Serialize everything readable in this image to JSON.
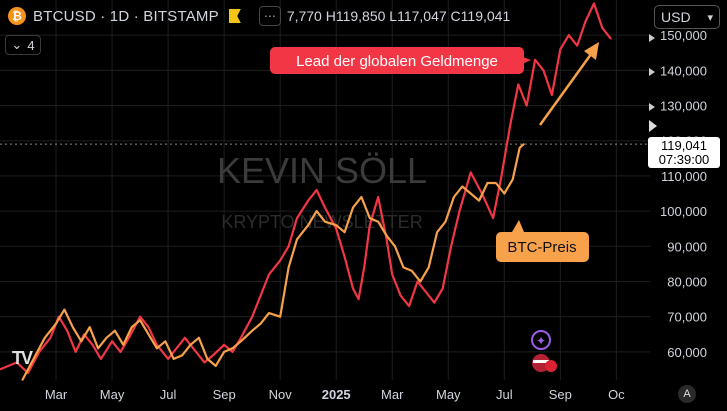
{
  "header": {
    "symbol": "BTCUSD · 1D · BITSTAMP",
    "ohlc": "7,770 H119,850 L117,047 C119,041",
    "currency": "USD",
    "indicator_count": "4"
  },
  "watermark": {
    "line1": "KEVIN SÖLL",
    "line2": "KRYPTO NEWSLETTER"
  },
  "annotations": {
    "red_label": "Lead der globalen Geldmenge",
    "orange_label": "BTC-Preis"
  },
  "price_tag": {
    "price": "119,041",
    "countdown": "07:39:00"
  },
  "auto_label": "A",
  "colors": {
    "red": "#f23645",
    "orange": "#f7a24b",
    "bg": "#000000"
  },
  "chart_data": {
    "type": "line",
    "ylim": [
      52000,
      160000
    ],
    "y_ticks": [
      60000,
      70000,
      80000,
      90000,
      100000,
      110000,
      120000,
      130000,
      140000,
      150000
    ],
    "y_tick_labels": [
      "60,000",
      "70,000",
      "80,000",
      "90,000",
      "100,000",
      "110,000",
      "120,000",
      "130,000",
      "140,000",
      "150,000"
    ],
    "x_tick_labels": [
      "Mar",
      "May",
      "Jul",
      "Sep",
      "Nov",
      "2025",
      "Mar",
      "May",
      "Jul",
      "Sep",
      "Oc"
    ],
    "x_tick_months": [
      2,
      4,
      6,
      8,
      10,
      12,
      14,
      16,
      18,
      20,
      22
    ],
    "xlim_months": [
      0,
      23.2
    ],
    "current_price": 119041,
    "series": [
      {
        "name": "Lead der globalen Geldmenge",
        "color": "#f23645",
        "points": [
          [
            0,
            55000
          ],
          [
            0.6,
            57000
          ],
          [
            1.0,
            54000
          ],
          [
            1.4,
            60000
          ],
          [
            1.8,
            64000
          ],
          [
            2.1,
            70000
          ],
          [
            2.4,
            66000
          ],
          [
            2.7,
            60000
          ],
          [
            3.0,
            65000
          ],
          [
            3.3,
            62000
          ],
          [
            3.6,
            58000
          ],
          [
            4.0,
            63000
          ],
          [
            4.3,
            60000
          ],
          [
            4.6,
            64000
          ],
          [
            5.0,
            70000
          ],
          [
            5.3,
            67000
          ],
          [
            5.6,
            62000
          ],
          [
            6.0,
            58000
          ],
          [
            6.3,
            61000
          ],
          [
            6.6,
            64000
          ],
          [
            7.0,
            60000
          ],
          [
            7.3,
            57000
          ],
          [
            7.6,
            59000
          ],
          [
            8.0,
            62000
          ],
          [
            8.3,
            60000
          ],
          [
            8.6,
            64000
          ],
          [
            9.0,
            70000
          ],
          [
            9.3,
            76000
          ],
          [
            9.6,
            82000
          ],
          [
            10.0,
            86000
          ],
          [
            10.3,
            90000
          ],
          [
            10.6,
            98000
          ],
          [
            11.0,
            103000
          ],
          [
            11.3,
            106000
          ],
          [
            11.6,
            101000
          ],
          [
            12.0,
            95000
          ],
          [
            12.3,
            87000
          ],
          [
            12.6,
            78000
          ],
          [
            12.8,
            75000
          ],
          [
            13.0,
            84000
          ],
          [
            13.2,
            96000
          ],
          [
            13.5,
            104000
          ],
          [
            13.8,
            92000
          ],
          [
            14.0,
            82000
          ],
          [
            14.3,
            76000
          ],
          [
            14.6,
            73000
          ],
          [
            14.9,
            80000
          ],
          [
            15.2,
            77000
          ],
          [
            15.5,
            74000
          ],
          [
            15.8,
            78000
          ],
          [
            16.1,
            90000
          ],
          [
            16.4,
            100000
          ],
          [
            16.8,
            111000
          ],
          [
            17.2,
            105000
          ],
          [
            17.6,
            98000
          ],
          [
            17.9,
            110000
          ],
          [
            18.2,
            124000
          ],
          [
            18.5,
            136000
          ],
          [
            18.8,
            130000
          ],
          [
            19.1,
            143000
          ],
          [
            19.4,
            140000
          ],
          [
            19.7,
            133000
          ],
          [
            20.0,
            146000
          ],
          [
            20.3,
            150000
          ],
          [
            20.6,
            147000
          ],
          [
            20.9,
            154000
          ],
          [
            21.2,
            159000
          ],
          [
            21.5,
            152000
          ],
          [
            21.8,
            149000
          ]
        ]
      },
      {
        "name": "BTC-Preis",
        "color": "#f7a24b",
        "points": [
          [
            0.8,
            52000
          ],
          [
            1.2,
            58000
          ],
          [
            1.6,
            64000
          ],
          [
            2.0,
            68000
          ],
          [
            2.3,
            72000
          ],
          [
            2.6,
            67000
          ],
          [
            2.9,
            63000
          ],
          [
            3.2,
            67000
          ],
          [
            3.5,
            61000
          ],
          [
            3.8,
            64000
          ],
          [
            4.1,
            66000
          ],
          [
            4.4,
            62000
          ],
          [
            4.7,
            67000
          ],
          [
            5.0,
            69000
          ],
          [
            5.3,
            65000
          ],
          [
            5.6,
            61000
          ],
          [
            5.9,
            63000
          ],
          [
            6.2,
            58000
          ],
          [
            6.5,
            59000
          ],
          [
            6.8,
            62000
          ],
          [
            7.1,
            64000
          ],
          [
            7.4,
            58000
          ],
          [
            7.7,
            56000
          ],
          [
            8.0,
            60000
          ],
          [
            8.3,
            61000
          ],
          [
            8.6,
            63000
          ],
          [
            9.0,
            66000
          ],
          [
            9.3,
            68000
          ],
          [
            9.6,
            71000
          ],
          [
            10.0,
            70000
          ],
          [
            10.3,
            84000
          ],
          [
            10.6,
            92000
          ],
          [
            11.0,
            96000
          ],
          [
            11.3,
            100000
          ],
          [
            11.6,
            97000
          ],
          [
            12.0,
            96000
          ],
          [
            12.3,
            94000
          ],
          [
            12.6,
            101000
          ],
          [
            12.9,
            104000
          ],
          [
            13.2,
            98000
          ],
          [
            13.5,
            97000
          ],
          [
            13.8,
            93000
          ],
          [
            14.1,
            90000
          ],
          [
            14.4,
            84000
          ],
          [
            14.7,
            83000
          ],
          [
            15.0,
            80000
          ],
          [
            15.3,
            84000
          ],
          [
            15.6,
            94000
          ],
          [
            15.9,
            97000
          ],
          [
            16.2,
            104000
          ],
          [
            16.5,
            107000
          ],
          [
            16.8,
            105000
          ],
          [
            17.1,
            103000
          ],
          [
            17.4,
            108000
          ],
          [
            17.7,
            108000
          ],
          [
            18.0,
            105000
          ],
          [
            18.3,
            109000
          ],
          [
            18.55,
            118000
          ],
          [
            18.7,
            119041
          ]
        ]
      }
    ]
  }
}
